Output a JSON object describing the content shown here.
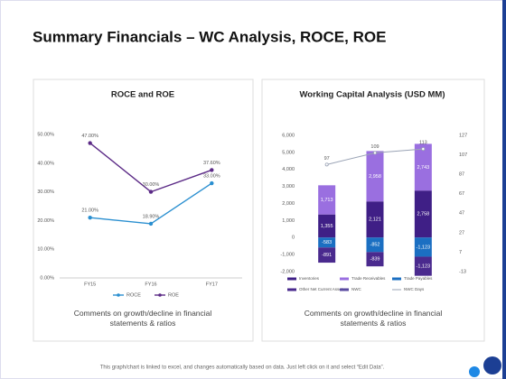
{
  "title": "Summary Financials – WC Analysis, ROCE, ROE",
  "footer": "This graph/chart is linked to excel, and changes automatically based on data. Just left click on it and select “Edit Data”.",
  "chart_data": [
    {
      "type": "line",
      "title": "ROCE and ROE",
      "categories": [
        "FY15",
        "FY16",
        "FY17"
      ],
      "series": [
        {
          "name": "ROCE",
          "color": "#2a8fd0",
          "values": [
            21,
            18.9,
            33
          ],
          "value_labels": [
            "21.00%",
            "18.90%",
            "33.00%"
          ]
        },
        {
          "name": "ROE",
          "color": "#5b2a86",
          "values": [
            47,
            30,
            37.6
          ],
          "value_labels": [
            "47.00%",
            "30.00%",
            "37.60%"
          ]
        }
      ],
      "ylim": [
        0,
        50
      ],
      "yticks": [
        {
          "value": 0,
          "label": "0.00%"
        },
        {
          "value": 10,
          "label": "10.00%"
        },
        {
          "value": 20,
          "label": "20.00%"
        },
        {
          "value": 30,
          "label": "30.00%"
        },
        {
          "value": 40,
          "label": "40.00%"
        },
        {
          "value": 50,
          "label": "50.00%"
        }
      ],
      "grid": false,
      "legend": "bottom",
      "comment": "Comments on growth/decline in financial statements & ratios"
    },
    {
      "type": "bar",
      "stacked": true,
      "title": "Working Capital Analysis (USD MM)",
      "categories": [
        null,
        null,
        null
      ],
      "series": [
        {
          "name": "Inventories",
          "color": "#3f1f86",
          "values": [
            1355,
            2121,
            2758
          ],
          "value_labels": [
            "1,355",
            "2,121",
            "2,758"
          ]
        },
        {
          "name": "Trade Receivables",
          "color": "#9a6fe0",
          "values": [
            1713,
            2958,
            2743
          ],
          "value_labels": [
            "1,713",
            "2,958",
            "2,743"
          ]
        },
        {
          "name": "Trade Payables",
          "color": "#1b6fc2",
          "values": [
            -583,
            -852,
            -1123
          ],
          "value_labels": [
            "-583",
            "-852",
            "-1,123"
          ]
        },
        {
          "name": "Other Net Current Assets",
          "color": "#4a2a8e",
          "values": [
            -891,
            -839,
            -1123
          ],
          "value_labels": [
            "-891",
            "-839",
            "-1,123"
          ]
        },
        {
          "name": "NWC",
          "color": "#5a4aa0"
        },
        {
          "name": "NWC Days",
          "type": "line",
          "axis": "y2",
          "color": "#9aa3b5",
          "values": [
            97,
            109,
            113
          ]
        }
      ],
      "ylim": [
        -2000,
        6000
      ],
      "yticks": [
        {
          "value": -2000,
          "label": "-2,000"
        },
        {
          "value": -1000,
          "label": "-1,000"
        },
        0,
        {
          "value": 1000,
          "label": "1,000"
        },
        {
          "value": 2000,
          "label": "2,000"
        },
        {
          "value": 3000,
          "label": "3,000"
        },
        {
          "value": 4000,
          "label": "4,000"
        },
        {
          "value": 5000,
          "label": "5,000"
        },
        {
          "value": 6000,
          "label": "6,000"
        }
      ],
      "y2lim": [
        -13,
        127
      ],
      "y2ticks": [
        -13,
        7,
        27,
        47,
        67,
        87,
        107,
        127
      ],
      "grid": false,
      "legend": "bottom",
      "comment": "Comments on growth/decline in financial statements & ratios"
    }
  ]
}
